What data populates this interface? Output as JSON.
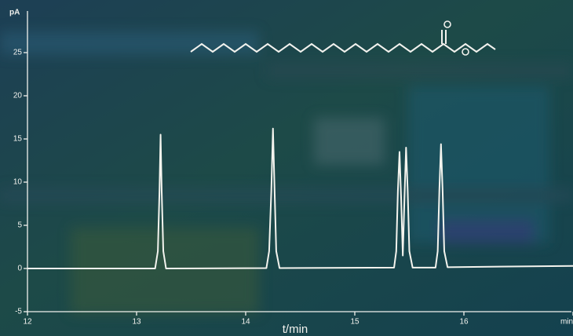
{
  "chart_data": {
    "type": "line",
    "y_label": "pA",
    "x_label": "t/min",
    "x": [
      12,
      13.17,
      13.195,
      13.21,
      13.22,
      13.23,
      13.245,
      13.27,
      14.19,
      14.215,
      14.235,
      14.25,
      14.265,
      14.28,
      14.31,
      15.36,
      15.38,
      15.395,
      15.41,
      15.425,
      15.44,
      15.455,
      15.47,
      15.485,
      15.5,
      15.53,
      15.74,
      15.76,
      15.775,
      15.79,
      15.805,
      15.82,
      15.85,
      17
    ],
    "series": [
      {
        "color": "#f4f4ee",
        "values": [
          0,
          0,
          2,
          9,
          15.5,
          9,
          2,
          0,
          0.05,
          2,
          9,
          16.2,
          9,
          2,
          0.05,
          0.1,
          2,
          9,
          13.5,
          8,
          1.5,
          8,
          14,
          9,
          2,
          0.1,
          0.1,
          2,
          9,
          14.4,
          9,
          2,
          0.15,
          0.3
        ]
      }
    ],
    "xlim": [
      12,
      17
    ],
    "xticks": [
      12,
      13,
      14,
      15,
      16,
      {
        "value": 17,
        "label": "min"
      }
    ],
    "ylim": [
      -5,
      30
    ],
    "yticks": [
      -5,
      0,
      5,
      10,
      15,
      20,
      25
    ]
  }
}
